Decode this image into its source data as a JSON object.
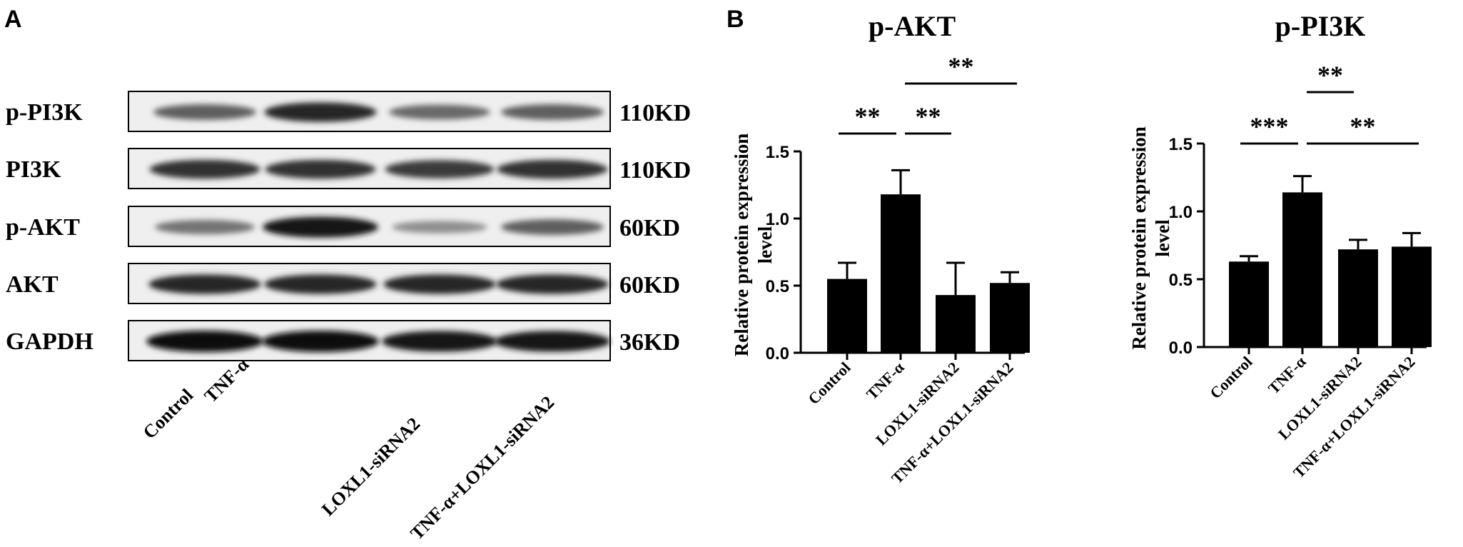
{
  "panel_labels": {
    "a": "A",
    "b": "B"
  },
  "blot": {
    "lanes": [
      "Control",
      "TNF-α",
      "LOXL1-siRNA2",
      "TNF-α+LOXL1-siRNA2"
    ],
    "rows": [
      {
        "protein": "p-PI3K",
        "weight": "110KD",
        "intensity": [
          0.55,
          0.85,
          0.5,
          0.55
        ]
      },
      {
        "protein": "PI3K",
        "weight": "110KD",
        "intensity": [
          0.8,
          0.8,
          0.75,
          0.8
        ]
      },
      {
        "protein": "p-AKT",
        "weight": "60KD",
        "intensity": [
          0.45,
          0.95,
          0.3,
          0.55
        ]
      },
      {
        "protein": "AKT",
        "weight": "60KD",
        "intensity": [
          0.85,
          0.85,
          0.85,
          0.85
        ]
      },
      {
        "protein": "GAPDH",
        "weight": "36KD",
        "intensity": [
          1.0,
          1.0,
          0.95,
          0.95
        ]
      }
    ]
  },
  "chart_data": [
    {
      "type": "bar",
      "title": "p-AKT",
      "ylabel": "Relative protein expression level",
      "categories": [
        "Control",
        "TNF-α",
        "LOXL1-siRNA2",
        "TNF-α+LOXL1-siRNA2"
      ],
      "values": [
        0.55,
        1.18,
        0.43,
        0.52
      ],
      "errors": [
        0.12,
        0.18,
        0.24,
        0.08
      ],
      "ylim": [
        0,
        1.5
      ],
      "yticks": [
        "0.0",
        "0.5",
        "1.0",
        "1.5"
      ],
      "significance": [
        {
          "from": 0,
          "to": 1,
          "label": "**"
        },
        {
          "from": 1,
          "to": 2,
          "label": "**"
        },
        {
          "from": 1,
          "to": 3,
          "label": "**"
        }
      ]
    },
    {
      "type": "bar",
      "title": "p-PI3K",
      "ylabel": "Relative protein expression level",
      "categories": [
        "Control",
        "TNF-α",
        "LOXL1-siRNA2",
        "TNF-α+LOXL1-siRNA2"
      ],
      "values": [
        0.63,
        1.14,
        0.72,
        0.74
      ],
      "errors": [
        0.04,
        0.12,
        0.07,
        0.1
      ],
      "ylim": [
        0,
        1.5
      ],
      "yticks": [
        "0.0",
        "0.5",
        "1.0",
        "1.5"
      ],
      "significance": [
        {
          "from": 0,
          "to": 1,
          "label": "***"
        },
        {
          "from": 1,
          "to": 3,
          "label": "**"
        },
        {
          "from": 1,
          "to": 2,
          "label": "**"
        }
      ]
    }
  ]
}
